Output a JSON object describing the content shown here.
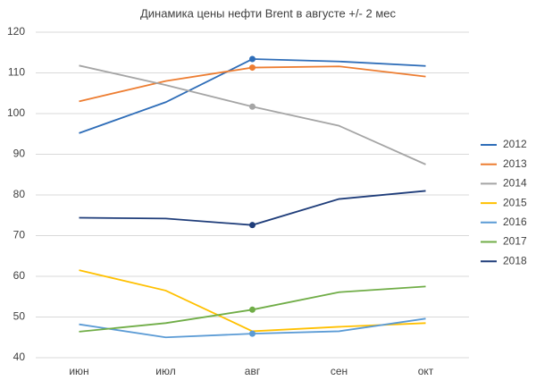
{
  "chart_data": {
    "type": "line",
    "title": "Динамика цены нефти Brent в августе +/- 2 мес",
    "categories": [
      "июн",
      "июл",
      "авг",
      "сен",
      "окт"
    ],
    "series": [
      {
        "name": "2012",
        "color": "#2e6db8",
        "values": [
          95.2,
          102.8,
          113.4,
          112.8,
          111.7
        ],
        "marker_at": 2
      },
      {
        "name": "2013",
        "color": "#ed7d31",
        "values": [
          103,
          108,
          111.3,
          111.6,
          109.1
        ],
        "marker_at": 2
      },
      {
        "name": "2014",
        "color": "#a5a5a5",
        "values": [
          111.8,
          107,
          101.7,
          97,
          87.5
        ],
        "marker_at": 2
      },
      {
        "name": "2015",
        "color": "#ffc000",
        "values": [
          61.5,
          56.5,
          46.5,
          47.6,
          48.5
        ]
      },
      {
        "name": "2016",
        "color": "#5b9bd5",
        "values": [
          48.2,
          45,
          45.9,
          46.5,
          49.6
        ],
        "marker_at": 2
      },
      {
        "name": "2017",
        "color": "#70ad47",
        "values": [
          46.4,
          48.5,
          51.8,
          56.1,
          57.5
        ],
        "marker_at": 2
      },
      {
        "name": "2018",
        "color": "#1f3d7a",
        "values": [
          74.4,
          74.2,
          72.6,
          79,
          81
        ],
        "marker_at": 2
      }
    ],
    "ylim": [
      40,
      120
    ],
    "yticks": [
      40,
      50,
      60,
      70,
      80,
      90,
      100,
      110,
      120
    ],
    "grid": true,
    "legend": "right"
  }
}
